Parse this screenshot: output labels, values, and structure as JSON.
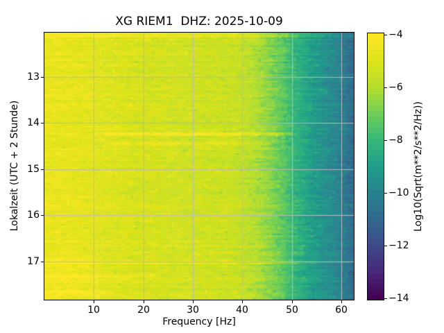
{
  "chart_data": {
    "type": "heatmap",
    "title": "XG RIEM1  DHZ: 2025-10-09",
    "xlabel": "Frequency [Hz]",
    "ylabel": "Lokalzeit (UTC + 2 Stunde)",
    "colorbar_label": "Log10(Sqrt(m**2/s**2/Hz))",
    "xlim": [
      0,
      62.5
    ],
    "ylim_hours": [
      12.04,
      17.83
    ],
    "xticks": {
      "values": [
        10,
        20,
        30,
        40,
        50,
        60
      ],
      "labels": [
        "10",
        "20",
        "30",
        "40",
        "50",
        "60"
      ]
    },
    "yticks": {
      "values": [
        13,
        14,
        15,
        16,
        17
      ],
      "labels": [
        "13",
        "14",
        "15",
        "16",
        "17"
      ]
    },
    "colorbar": {
      "vmin": -14,
      "vmax": -4,
      "tick_values": [
        -4,
        -6,
        -8,
        -10,
        -12,
        -14
      ],
      "tick_labels": [
        "−4",
        "−6",
        "−8",
        "−10",
        "−12",
        "−14"
      ]
    },
    "colormap": {
      "name": "viridis",
      "stops": [
        [
          0.0,
          "#440154"
        ],
        [
          0.1,
          "#482878"
        ],
        [
          0.2,
          "#3e4989"
        ],
        [
          0.3,
          "#31688e"
        ],
        [
          0.4,
          "#26828e"
        ],
        [
          0.5,
          "#1f9e89"
        ],
        [
          0.6,
          "#35b779"
        ],
        [
          0.7,
          "#6ece58"
        ],
        [
          0.8,
          "#b5de2b"
        ],
        [
          0.9,
          "#dce319"
        ],
        [
          1.0,
          "#fde725"
        ]
      ]
    },
    "grid": {
      "visible": true,
      "color": "#b9b9b9"
    },
    "spectral_profile": [
      [
        0,
        -4.6
      ],
      [
        5,
        -4.6
      ],
      [
        10,
        -4.85
      ],
      [
        15,
        -5.0
      ],
      [
        20,
        -5.15
      ],
      [
        30,
        -5.3
      ],
      [
        38,
        -5.45
      ],
      [
        42,
        -5.9
      ],
      [
        45,
        -6.5
      ],
      [
        48,
        -7.2
      ],
      [
        50,
        -7.9
      ],
      [
        53,
        -8.7
      ],
      [
        56,
        -9.4
      ],
      [
        59,
        -9.9
      ],
      [
        62.5,
        -10.9
      ]
    ],
    "bright_rows": [
      {
        "time": 12.1,
        "boost": 0.85,
        "fmin": 0,
        "fmax": 62.5
      },
      {
        "time": 14.23,
        "boost": 0.95,
        "fmin": 12,
        "fmax": 50
      },
      {
        "time": 14.46,
        "boost": 0.65,
        "fmin": 12,
        "fmax": 46
      },
      {
        "time": 17.02,
        "boost": 0.5,
        "fmin": 0,
        "fmax": 55
      },
      {
        "time": 17.32,
        "boost": 0.5,
        "fmin": 0,
        "fmax": 22
      },
      {
        "time": 17.65,
        "boost": 0.45,
        "fmin": 0,
        "fmax": 14
      }
    ],
    "patches": [
      {
        "t0": 16.9,
        "t1": 17.8,
        "f0": 0,
        "f1": 11,
        "boost": 0.35
      }
    ],
    "noise": {
      "cell_amp": 0.34,
      "row_amp": 0.42,
      "speck_boost": 0.6,
      "speck_prob": 0.025,
      "seed": 20251009
    }
  },
  "frame": {
    "background": "#ffffff",
    "axis_color": "#000000",
    "text_color": "#000000"
  }
}
